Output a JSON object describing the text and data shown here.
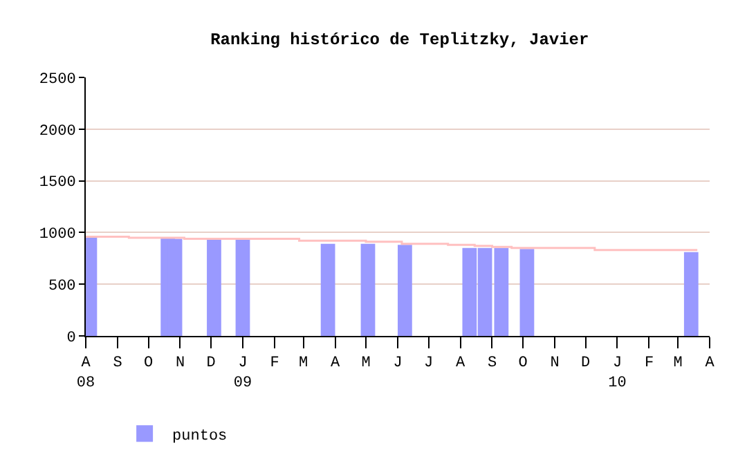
{
  "chart_data": {
    "type": "bar",
    "title": "Ranking histórico de Teplitzky, Javier",
    "series": [
      {
        "name": "puntos",
        "color": "#9999ff",
        "x": [
          "2008-08-05",
          "2008-10-20",
          "2008-10-27",
          "2008-12-04",
          "2009-01-01",
          "2009-03-25",
          "2009-05-03",
          "2009-06-08",
          "2009-08-10",
          "2009-08-25",
          "2009-09-10",
          "2009-10-05",
          "2010-03-14"
        ],
        "values": [
          960,
          950,
          940,
          940,
          940,
          890,
          890,
          880,
          850,
          850,
          850,
          840,
          810
        ]
      },
      {
        "type": "step",
        "color": "#ffc0c0",
        "x": [
          "2008-08-01",
          "2008-09-12",
          "2008-11-05",
          "2009-02-25",
          "2009-05-01",
          "2009-06-05",
          "2009-07-20",
          "2009-08-15",
          "2009-09-01",
          "2009-09-20",
          "2009-12-10",
          "2010-03-20"
        ],
        "values": [
          960,
          950,
          940,
          920,
          910,
          890,
          880,
          870,
          860,
          850,
          830,
          830
        ]
      }
    ],
    "xlim": [
      "2008-08-01",
      "2010-04-01"
    ],
    "xticks": [
      {
        "value": "2008-08-01",
        "label": "A\n08"
      },
      {
        "value": "2008-09-01",
        "label": "S"
      },
      {
        "value": "2008-10-01",
        "label": "O"
      },
      {
        "value": "2008-11-01",
        "label": "N"
      },
      {
        "value": "2008-12-01",
        "label": "D"
      },
      {
        "value": "2009-01-01",
        "label": "J\n09"
      },
      {
        "value": "2009-02-01",
        "label": "F"
      },
      {
        "value": "2009-03-01",
        "label": "M"
      },
      {
        "value": "2009-04-01",
        "label": "A"
      },
      {
        "value": "2009-05-01",
        "label": "M"
      },
      {
        "value": "2009-06-01",
        "label": "J"
      },
      {
        "value": "2009-07-01",
        "label": "J"
      },
      {
        "value": "2009-08-01",
        "label": "A"
      },
      {
        "value": "2009-09-01",
        "label": "S"
      },
      {
        "value": "2009-10-01",
        "label": "O"
      },
      {
        "value": "2009-11-01",
        "label": "N"
      },
      {
        "value": "2009-12-01",
        "label": "D"
      },
      {
        "value": "2010-01-01",
        "label": "J\n10"
      },
      {
        "value": "2010-02-01",
        "label": "F"
      },
      {
        "value": "2010-03-01",
        "label": "M"
      },
      {
        "value": "2010-04-01",
        "label": "A"
      }
    ],
    "ylim": [
      0,
      2500
    ],
    "yticks": [
      0,
      500,
      1000,
      1500,
      2000,
      2500
    ],
    "grid": "y",
    "legend": "bottom left"
  }
}
